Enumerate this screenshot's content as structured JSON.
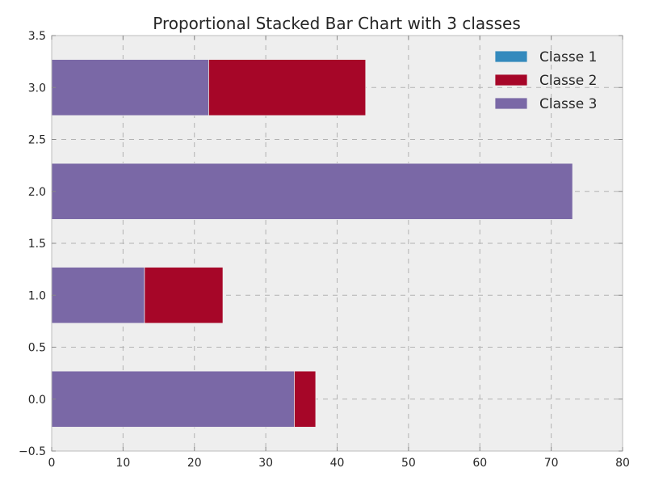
{
  "chart_data": {
    "type": "bar",
    "orientation": "horizontal",
    "stacked": true,
    "title": "Proportional Stacked Bar Chart with 3 classes",
    "xlabel": "",
    "ylabel": "",
    "xlim": [
      0,
      80
    ],
    "ylim": [
      -0.5,
      3.5
    ],
    "xticks": [
      "0",
      "10",
      "20",
      "30",
      "40",
      "50",
      "60",
      "70",
      "80"
    ],
    "yticks": [
      "−0.5",
      "0.0",
      "0.5",
      "1.0",
      "1.5",
      "2.0",
      "2.5",
      "3.0",
      "3.5"
    ],
    "grid": true,
    "legend_position": "top-right",
    "categories": [
      0,
      1,
      2,
      3
    ],
    "series": [
      {
        "name": "Classe 1",
        "color": "#348ABD",
        "values": [
          0,
          0,
          0,
          0
        ]
      },
      {
        "name": "Classe 2",
        "color": "#A60628",
        "values": [
          37,
          24,
          0,
          44
        ]
      },
      {
        "name": "Classe 3",
        "color": "#7A68A6",
        "values": [
          34,
          13,
          73,
          22
        ]
      }
    ]
  }
}
